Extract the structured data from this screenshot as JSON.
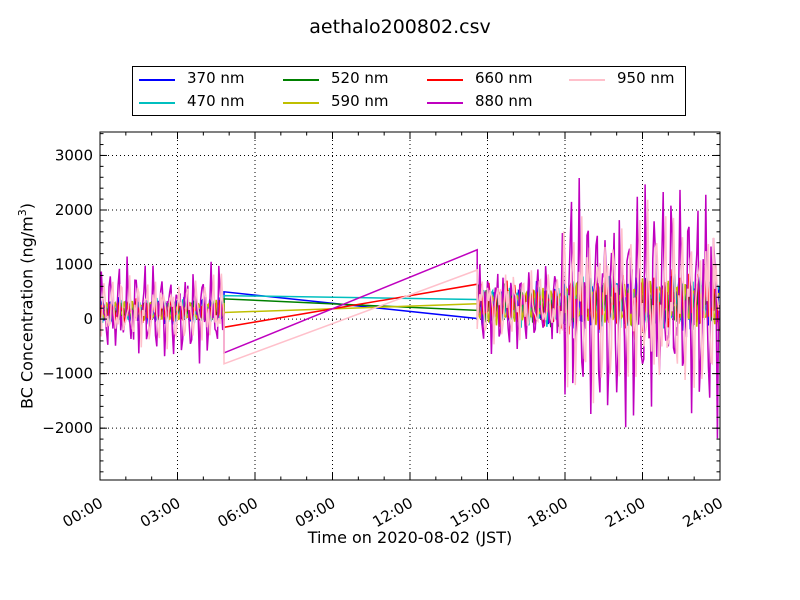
{
  "chart_data": {
    "type": "line",
    "title": "aethalo200802.csv",
    "xlabel": "Time on 2020-08-02 (JST)",
    "ylabel": "BC Concentration (ng/m",
    "ylabel_sup": "3",
    "ylabel_tail": ")",
    "xlim": [
      "00:00",
      "24:00"
    ],
    "ylim": [
      -2950,
      3430
    ],
    "x_ticks": [
      "00:00",
      "03:00",
      "06:00",
      "09:00",
      "12:00",
      "15:00",
      "18:00",
      "21:00",
      "24:00"
    ],
    "y_ticks": [
      -2000,
      -1000,
      0,
      1000,
      2000,
      3000
    ],
    "y_tick_labels": [
      "−2000",
      "−1000",
      "0",
      "1000",
      "2000",
      "3000"
    ],
    "grid": true,
    "legend": "top-outside",
    "series": [
      {
        "name": "370 nm",
        "color": "#0000ff",
        "gap": [
          4.8,
          14.6
        ],
        "gap_values": [
          500,
          10
        ],
        "amp": [
          250,
          400,
          500
        ],
        "phase": 0.3
      },
      {
        "name": "470 nm",
        "color": "#00bfbf",
        "gap": [
          4.8,
          14.6
        ],
        "gap_values": [
          430,
          360
        ],
        "amp": [
          220,
          380,
          480
        ],
        "phase": 0.9
      },
      {
        "name": "520 nm",
        "color": "#008000",
        "gap": [
          4.8,
          14.6
        ],
        "gap_values": [
          370,
          160
        ],
        "amp": [
          200,
          380,
          480
        ],
        "phase": 1.7
      },
      {
        "name": "590 nm",
        "color": "#bfbf00",
        "gap": [
          4.8,
          14.6
        ],
        "gap_values": [
          120,
          280
        ],
        "amp": [
          180,
          330,
          420
        ],
        "phase": 2.4
      },
      {
        "name": "660 nm",
        "color": "#ff0000",
        "gap": [
          4.8,
          14.6
        ],
        "gap_values": [
          -150,
          640
        ],
        "amp": [
          250,
          450,
          650
        ],
        "phase": 3.1
      },
      {
        "name": "880 nm",
        "color": "#bf00bf",
        "gap": [
          4.8,
          14.6
        ],
        "gap_values": [
          -620,
          1270
        ],
        "amp": [
          900,
          800,
          2200
        ],
        "phase": 0.0
      },
      {
        "name": "950 nm",
        "color": "#ffc0cb",
        "gap": [
          4.8,
          14.6
        ],
        "gap_values": [
          -820,
          900
        ],
        "amp": [
          650,
          650,
          1700
        ],
        "phase": 1.3
      }
    ]
  }
}
